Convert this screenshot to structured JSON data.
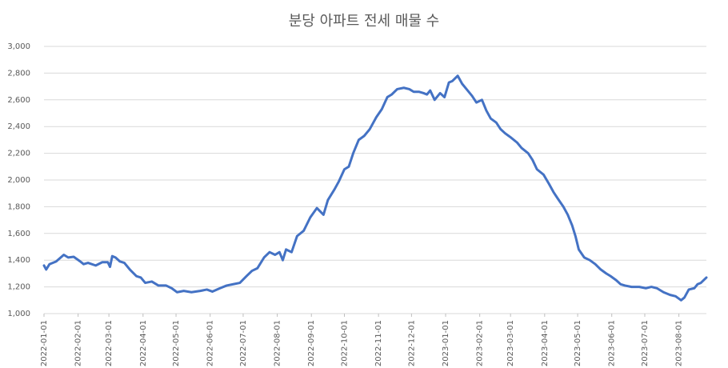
{
  "chart_data": {
    "type": "line",
    "title": "분당 아파트 전세 매물 수",
    "color": "#4472c4",
    "grid": true,
    "x": [
      "2022-01-01",
      "2022-01-03",
      "2022-01-06",
      "2022-01-12",
      "2022-01-19",
      "2022-01-23",
      "2022-01-28",
      "2022-02-03",
      "2022-02-06",
      "2022-02-10",
      "2022-02-17",
      "2022-02-23",
      "2022-02-28",
      "2022-03-02",
      "2022-03-04",
      "2022-03-07",
      "2022-03-11",
      "2022-03-15",
      "2022-03-20",
      "2022-03-26",
      "2022-03-30",
      "2022-04-03",
      "2022-04-09",
      "2022-04-15",
      "2022-04-22",
      "2022-04-27",
      "2022-05-02",
      "2022-05-08",
      "2022-05-15",
      "2022-05-23",
      "2022-05-29",
      "2022-06-03",
      "2022-06-10",
      "2022-06-16",
      "2022-06-22",
      "2022-06-28",
      "2022-07-04",
      "2022-07-09",
      "2022-07-14",
      "2022-07-20",
      "2022-07-25",
      "2022-07-30",
      "2022-08-03",
      "2022-08-06",
      "2022-08-09",
      "2022-08-14",
      "2022-08-19",
      "2022-08-25",
      "2022-08-31",
      "2022-09-06",
      "2022-09-12",
      "2022-09-16",
      "2022-09-22",
      "2022-09-26",
      "2022-10-01",
      "2022-10-05",
      "2022-10-09",
      "2022-10-14",
      "2022-10-19",
      "2022-10-24",
      "2022-10-30",
      "2022-11-04",
      "2022-11-09",
      "2022-11-13",
      "2022-11-18",
      "2022-11-24",
      "2022-11-29",
      "2022-12-03",
      "2022-12-08",
      "2022-12-12",
      "2022-12-15",
      "2022-12-18",
      "2022-12-22",
      "2022-12-27",
      "2022-12-31",
      "2023-01-04",
      "2023-01-07",
      "2023-01-12",
      "2023-01-16",
      "2023-01-20",
      "2023-01-25",
      "2023-01-29",
      "2023-02-03",
      "2023-02-07",
      "2023-02-11",
      "2023-02-16",
      "2023-02-20",
      "2023-02-24",
      "2023-03-01",
      "2023-03-07",
      "2023-03-11",
      "2023-03-17",
      "2023-03-21",
      "2023-03-25",
      "2023-03-31",
      "2023-04-05",
      "2023-04-09",
      "2023-04-13",
      "2023-04-18",
      "2023-04-22",
      "2023-04-26",
      "2023-04-29",
      "2023-05-02",
      "2023-05-07",
      "2023-05-12",
      "2023-05-17",
      "2023-05-22",
      "2023-05-27",
      "2023-05-31",
      "2023-06-05",
      "2023-06-09",
      "2023-06-13",
      "2023-06-19",
      "2023-06-26",
      "2023-07-02",
      "2023-07-07",
      "2023-07-12",
      "2023-07-18",
      "2023-07-24",
      "2023-07-29",
      "2023-08-03",
      "2023-08-06",
      "2023-08-10",
      "2023-08-15",
      "2023-08-18",
      "2023-08-21",
      "2023-08-26"
    ],
    "values": [
      1360,
      1330,
      1370,
      1390,
      1440,
      1420,
      1425,
      1390,
      1370,
      1380,
      1360,
      1385,
      1385,
      1350,
      1430,
      1420,
      1390,
      1380,
      1330,
      1280,
      1270,
      1230,
      1240,
      1210,
      1210,
      1190,
      1160,
      1170,
      1160,
      1170,
      1180,
      1165,
      1190,
      1210,
      1220,
      1230,
      1280,
      1320,
      1340,
      1420,
      1460,
      1440,
      1460,
      1400,
      1480,
      1460,
      1580,
      1620,
      1720,
      1790,
      1740,
      1850,
      1930,
      1990,
      2080,
      2100,
      2200,
      2300,
      2330,
      2380,
      2470,
      2530,
      2620,
      2640,
      2680,
      2690,
      2680,
      2660,
      2660,
      2650,
      2640,
      2670,
      2600,
      2650,
      2620,
      2730,
      2740,
      2780,
      2720,
      2680,
      2630,
      2580,
      2600,
      2520,
      2460,
      2430,
      2380,
      2350,
      2320,
      2280,
      2240,
      2200,
      2150,
      2080,
      2040,
      1970,
      1910,
      1860,
      1800,
      1740,
      1660,
      1580,
      1480,
      1420,
      1400,
      1370,
      1330,
      1300,
      1280,
      1250,
      1220,
      1210,
      1200,
      1200,
      1190,
      1200,
      1190,
      1160,
      1140,
      1130,
      1100,
      1120,
      1180,
      1190,
      1220,
      1230,
      1270
    ],
    "xlim": [
      "2022-01-01",
      "2023-08-26"
    ],
    "xticks": [
      "2022-01-01",
      "2022-02-01",
      "2022-03-01",
      "2022-04-01",
      "2022-05-01",
      "2022-06-01",
      "2022-07-01",
      "2022-08-01",
      "2022-09-01",
      "2022-10-01",
      "2022-11-01",
      "2022-12-01",
      "2023-01-01",
      "2023-02-01",
      "2023-03-01",
      "2023-04-01",
      "2023-05-01",
      "2023-06-01",
      "2023-07-01",
      "2023-08-01"
    ],
    "ylim": [
      1000,
      3000
    ],
    "yticks": [
      {
        "value": 1000,
        "label": "1,000"
      },
      {
        "value": 1200,
        "label": "1,200"
      },
      {
        "value": 1400,
        "label": "1,400"
      },
      {
        "value": 1600,
        "label": "1,600"
      },
      {
        "value": 1800,
        "label": "1,800"
      },
      {
        "value": 2000,
        "label": "2,000"
      },
      {
        "value": 2200,
        "label": "2,200"
      },
      {
        "value": 2400,
        "label": "2,400"
      },
      {
        "value": 2600,
        "label": "2,600"
      },
      {
        "value": 2800,
        "label": "2,800"
      },
      {
        "value": 3000,
        "label": "3,000"
      }
    ]
  }
}
